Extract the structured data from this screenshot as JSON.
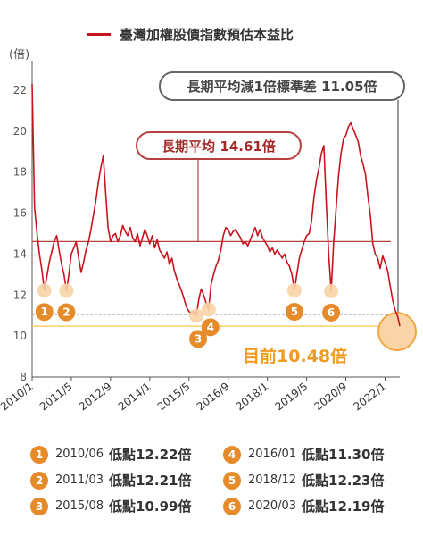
{
  "legend": {
    "label": "臺灣加權股價指數預估本益比",
    "color": "#c8141e"
  },
  "unit": "(倍)",
  "annotations": {
    "mean_label": "長期平均 14.61倍",
    "std_label": "長期平均減1倍標準差 11.05倍",
    "current_label": "目前10.48倍"
  },
  "lows": [
    {
      "n": "1",
      "date": "2010/06",
      "label": "低點",
      "value": "12.22倍"
    },
    {
      "n": "2",
      "date": "2011/03",
      "label": "低點",
      "value": "12.21倍"
    },
    {
      "n": "3",
      "date": "2015/08",
      "label": "低點",
      "value": "10.99倍"
    },
    {
      "n": "4",
      "date": "2016/01",
      "label": "低點",
      "value": "11.30倍"
    },
    {
      "n": "5",
      "date": "2018/12",
      "label": "低點",
      "value": "12.23倍"
    },
    {
      "n": "6",
      "date": "2020/03",
      "label": "低點",
      "value": "12.19倍"
    }
  ],
  "colors": {
    "line": "#c8141e",
    "mean": "#b7403f",
    "std": "#888888",
    "current": "#f5c84a",
    "marker": "#e58b2a",
    "marker_halo": "#f8d4a6"
  },
  "chart_data": {
    "type": "line",
    "title": "臺灣加權股價指數預估本益比",
    "ylabel": "(倍)",
    "ylim": [
      8,
      23
    ],
    "yticks": [
      8,
      10,
      12,
      14,
      16,
      18,
      20,
      22
    ],
    "xlim": [
      "2010/01",
      "2022/07"
    ],
    "xticks": [
      "2010/1",
      "2011/5",
      "2012/9",
      "2014/1",
      "2015/5",
      "2016/9",
      "2018/1",
      "2019/5",
      "2020/9",
      "2022/1"
    ],
    "grid": false,
    "reference_lines": [
      {
        "label": "長期平均",
        "value": 14.61
      },
      {
        "label": "長期平均減1倍標準差",
        "value": 11.05
      },
      {
        "label": "目前",
        "value": 10.48
      }
    ],
    "series": [
      {
        "name": "臺灣加權股價指數預估本益比",
        "x": [
          "2010/01",
          "2010/02",
          "2010/03",
          "2010/04",
          "2010/05",
          "2010/06",
          "2010/07",
          "2010/08",
          "2010/09",
          "2010/10",
          "2010/11",
          "2010/12",
          "2011/01",
          "2011/02",
          "2011/03",
          "2011/04",
          "2011/05",
          "2011/06",
          "2011/07",
          "2011/08",
          "2011/09",
          "2011/10",
          "2011/11",
          "2011/12",
          "2012/01",
          "2012/02",
          "2012/03",
          "2012/04",
          "2012/05",
          "2012/06",
          "2012/07",
          "2012/08",
          "2012/09",
          "2012/10",
          "2012/11",
          "2012/12",
          "2013/01",
          "2013/02",
          "2013/03",
          "2013/04",
          "2013/05",
          "2013/06",
          "2013/07",
          "2013/08",
          "2013/09",
          "2013/10",
          "2013/11",
          "2013/12",
          "2014/01",
          "2014/02",
          "2014/03",
          "2014/04",
          "2014/05",
          "2014/06",
          "2014/07",
          "2014/08",
          "2014/09",
          "2014/10",
          "2014/11",
          "2014/12",
          "2015/01",
          "2015/02",
          "2015/03",
          "2015/04",
          "2015/05",
          "2015/06",
          "2015/07",
          "2015/08",
          "2015/09",
          "2015/10",
          "2015/11",
          "2015/12",
          "2016/01",
          "2016/02",
          "2016/03",
          "2016/04",
          "2016/05",
          "2016/06",
          "2016/07",
          "2016/08",
          "2016/09",
          "2016/10",
          "2016/11",
          "2016/12",
          "2017/01",
          "2017/02",
          "2017/03",
          "2017/04",
          "2017/05",
          "2017/06",
          "2017/07",
          "2017/08",
          "2017/09",
          "2017/10",
          "2017/11",
          "2017/12",
          "2018/01",
          "2018/02",
          "2018/03",
          "2018/04",
          "2018/05",
          "2018/06",
          "2018/07",
          "2018/08",
          "2018/09",
          "2018/10",
          "2018/11",
          "2018/12",
          "2019/01",
          "2019/02",
          "2019/03",
          "2019/04",
          "2019/05",
          "2019/06",
          "2019/07",
          "2019/08",
          "2019/09",
          "2019/10",
          "2019/11",
          "2019/12",
          "2020/01",
          "2020/02",
          "2020/03",
          "2020/04",
          "2020/05",
          "2020/06",
          "2020/07",
          "2020/08",
          "2020/09",
          "2020/10",
          "2020/11",
          "2020/12",
          "2021/01",
          "2021/02",
          "2021/03",
          "2021/04",
          "2021/05",
          "2021/06",
          "2021/07",
          "2021/08",
          "2021/09",
          "2021/10",
          "2021/11",
          "2021/12",
          "2022/01",
          "2022/02",
          "2022/03",
          "2022/04",
          "2022/05",
          "2022/06",
          "2022/07"
        ],
        "values": [
          22.3,
          16.3,
          15.0,
          14.0,
          13.2,
          12.22,
          12.9,
          13.6,
          14.1,
          14.6,
          14.9,
          14.2,
          13.5,
          13.0,
          12.21,
          13.0,
          14.0,
          14.3,
          14.6,
          13.8,
          13.1,
          13.6,
          14.2,
          14.6,
          15.2,
          15.9,
          16.6,
          17.5,
          18.2,
          18.8,
          17.0,
          15.3,
          14.6,
          14.9,
          15.0,
          14.6,
          14.9,
          15.4,
          15.1,
          14.9,
          15.3,
          14.8,
          14.6,
          15.0,
          14.4,
          14.8,
          15.2,
          14.9,
          14.5,
          14.9,
          14.3,
          14.7,
          14.2,
          14.0,
          13.8,
          14.1,
          13.5,
          13.8,
          13.2,
          12.8,
          12.5,
          12.2,
          11.8,
          11.4,
          11.2,
          11.1,
          11.2,
          10.99,
          11.8,
          12.3,
          12.0,
          11.6,
          11.3,
          12.5,
          13.0,
          13.4,
          13.7,
          14.2,
          14.9,
          15.3,
          15.2,
          14.9,
          15.1,
          15.2,
          15.0,
          14.8,
          14.5,
          14.6,
          14.4,
          14.7,
          15.0,
          15.3,
          14.9,
          15.2,
          14.8,
          14.6,
          14.4,
          14.1,
          14.3,
          14.0,
          14.2,
          14.0,
          13.8,
          14.0,
          13.6,
          13.4,
          13.0,
          12.23,
          13.0,
          13.8,
          14.2,
          14.6,
          14.9,
          15.0,
          15.6,
          16.8,
          17.6,
          18.2,
          18.9,
          19.3,
          16.5,
          14.0,
          12.19,
          14.5,
          16.2,
          17.8,
          18.9,
          19.6,
          19.8,
          20.2,
          20.4,
          20.1,
          19.8,
          19.5,
          18.8,
          18.4,
          17.9,
          16.8,
          15.9,
          14.5,
          14.0,
          13.8,
          13.3,
          13.9,
          13.6,
          13.2,
          12.5,
          11.8,
          11.3,
          11.0,
          10.48
        ]
      }
    ],
    "markers": [
      {
        "label": "1",
        "date": "2010/06",
        "value": 12.22
      },
      {
        "label": "2",
        "date": "2011/03",
        "value": 12.21
      },
      {
        "label": "3",
        "date": "2015/08",
        "value": 10.99
      },
      {
        "label": "4",
        "date": "2016/01",
        "value": 11.3
      },
      {
        "label": "5",
        "date": "2018/12",
        "value": 12.23
      },
      {
        "label": "6",
        "date": "2020/03",
        "value": 12.19
      }
    ]
  }
}
